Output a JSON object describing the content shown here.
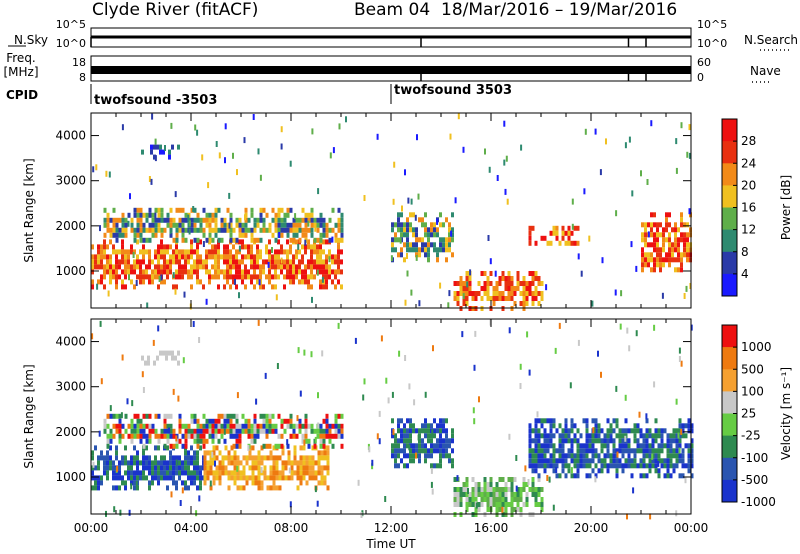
{
  "header": {
    "station": "Clyde River (fitACF)",
    "beam": "Beam 04",
    "date_range": "18/Mar/2016 – 19/Mar/2016"
  },
  "chart_data": [
    {
      "type": "line",
      "panel": "noise",
      "left_label": "N.Sky",
      "right_label": "N.Search",
      "left_ticks": [
        "10^5",
        "10^0"
      ],
      "right_ticks": [
        "10^5",
        "10^0"
      ],
      "description_points": {
        "x": [
          "00:00",
          "24:00"
        ],
        "level": "near 10^0 with spikes"
      }
    },
    {
      "type": "line",
      "panel": "frequency",
      "left_label_lines": [
        "Freq.",
        "[MHz]"
      ],
      "right_label": "Nave",
      "left_ticks": [
        "18",
        "8"
      ],
      "right_ticks": [
        "60",
        "0"
      ]
    },
    {
      "type": "table",
      "panel": "cpid",
      "label": "CPID",
      "entries": [
        {
          "name": "twofsound -3503",
          "start": "00:00",
          "end": "12:00"
        },
        {
          "name": "twofsound 3503",
          "start": "12:00",
          "end": "24:00"
        }
      ]
    },
    {
      "type": "heatmap",
      "panel": "power",
      "ylabel": "Slant Range [km]",
      "ylim": [
        180,
        4500
      ],
      "yticks": [
        1000,
        2000,
        3000,
        4000
      ],
      "xlim": [
        0,
        24
      ],
      "colorbar": {
        "label": "Power [dB]",
        "ticks": [
          "4",
          "8",
          "12",
          "16",
          "20",
          "24",
          "28"
        ],
        "colors": [
          "#1a1aff",
          "#2a3aa8",
          "#2e8a70",
          "#5fae4a",
          "#f0c020",
          "#f28a18",
          "#e83010",
          "#ee1010"
        ]
      },
      "regions": [
        {
          "x": [
            0.0,
            10.0
          ],
          "range_km": [
            700,
            1700
          ],
          "level": "high"
        },
        {
          "x": [
            0.5,
            10.0
          ],
          "range_km": [
            1700,
            2400
          ],
          "level": "mid"
        },
        {
          "x": [
            2.0,
            3.5
          ],
          "range_km": [
            3500,
            3800
          ],
          "level": "low"
        },
        {
          "x": [
            12.0,
            14.5
          ],
          "range_km": [
            1200,
            2300
          ],
          "level": "mid"
        },
        {
          "x": [
            14.5,
            18.0
          ],
          "range_km": [
            200,
            1000
          ],
          "level": "high"
        },
        {
          "x": [
            17.5,
            19.5
          ],
          "range_km": [
            1600,
            2000
          ],
          "level": "high"
        },
        {
          "x": [
            22.0,
            24.0
          ],
          "range_km": [
            1000,
            2300
          ],
          "level": "high"
        }
      ]
    },
    {
      "type": "heatmap",
      "panel": "velocity",
      "ylabel": "Slant Range [km]",
      "xlabel": "Time UT",
      "ylim": [
        180,
        4500
      ],
      "yticks": [
        1000,
        2000,
        3000,
        4000
      ],
      "xticks": [
        "00:00",
        "04:00",
        "08:00",
        "12:00",
        "16:00",
        "20:00",
        "00:00"
      ],
      "xlim": [
        0,
        24
      ],
      "colorbar": {
        "label": "Velocity [m s⁻¹]",
        "ticks": [
          "1000",
          "500",
          "100",
          "25",
          "-25",
          "-100",
          "-500",
          "-1000"
        ],
        "colors": [
          "#1a33cc",
          "#2a55b0",
          "#2e8a50",
          "#66cc44",
          "#c8c8c8",
          "#f5a030",
          "#ee7a10",
          "#ee1010"
        ]
      },
      "regions": [
        {
          "x": [
            0.0,
            4.5
          ],
          "range_km": [
            800,
            1700
          ],
          "level": "toward"
        },
        {
          "x": [
            4.5,
            9.5
          ],
          "range_km": [
            800,
            1700
          ],
          "level": "away"
        },
        {
          "x": [
            0.5,
            10.0
          ],
          "range_km": [
            1700,
            2400
          ],
          "level": "mixed"
        },
        {
          "x": [
            2.0,
            3.5
          ],
          "range_km": [
            3500,
            3800
          ],
          "level": "ground"
        },
        {
          "x": [
            12.0,
            14.5
          ],
          "range_km": [
            1200,
            2300
          ],
          "level": "toward"
        },
        {
          "x": [
            14.5,
            18.0
          ],
          "range_km": [
            200,
            1000
          ],
          "level": "slow"
        },
        {
          "x": [
            17.5,
            24.0
          ],
          "range_km": [
            1000,
            2300
          ],
          "level": "toward"
        }
      ]
    }
  ]
}
